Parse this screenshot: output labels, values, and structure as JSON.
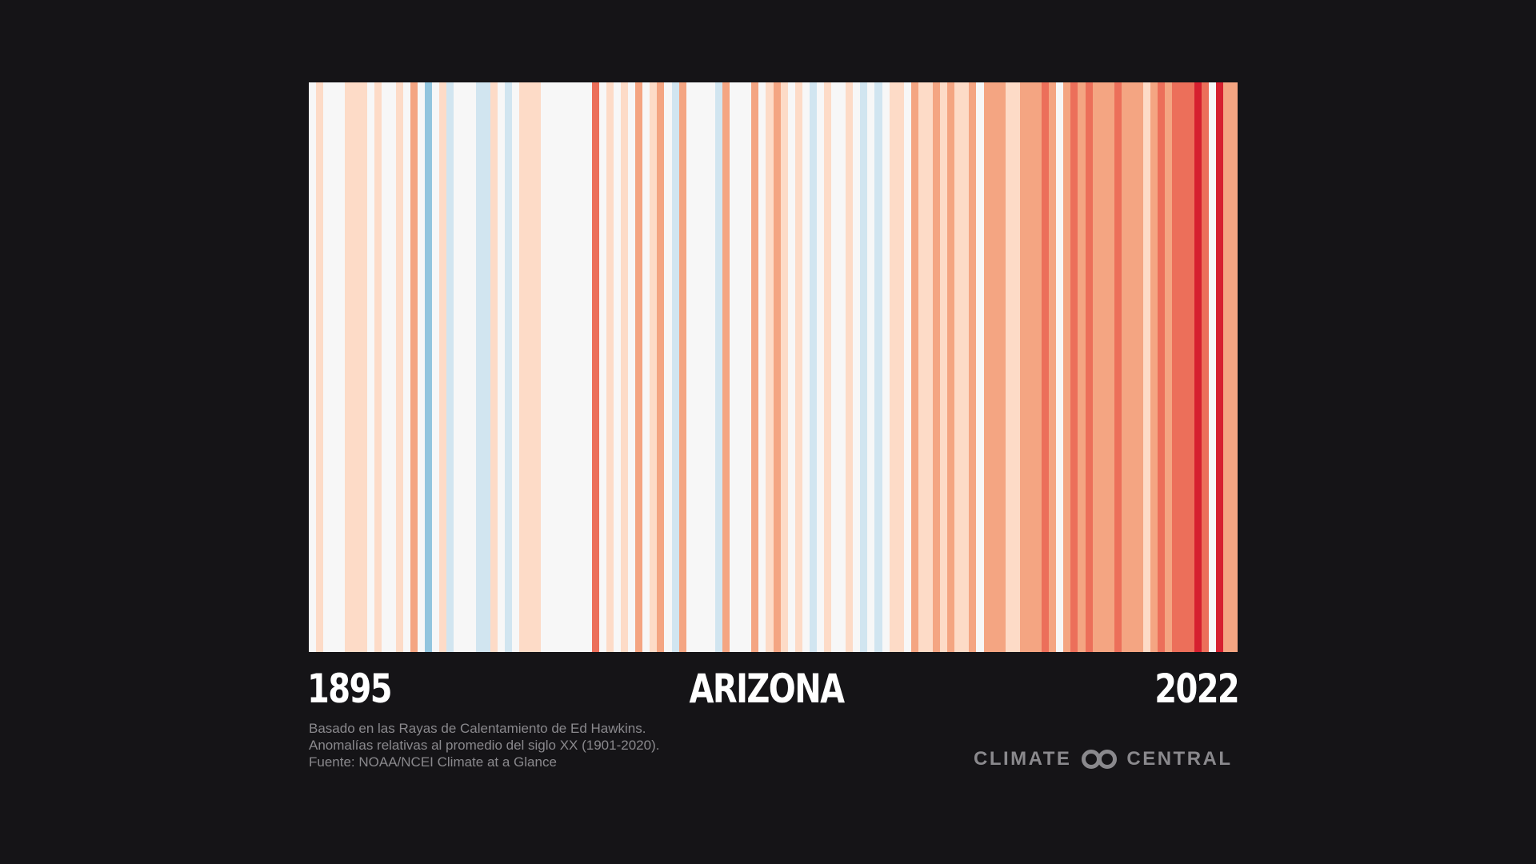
{
  "chart_data": {
    "type": "warming-stripes",
    "start_year": "1895",
    "end_year": "2022",
    "title": "ARIZONA",
    "palette": [
      "#2166ac",
      "#4393c3",
      "#92c5de",
      "#d1e5f0",
      "#f7f7f7",
      "#fddbc7",
      "#f4a582",
      "#ec6f5a",
      "#d6202f",
      "#b2182b"
    ],
    "anomaly_levels": [
      -4,
      -3,
      -2,
      -1,
      0,
      1,
      2,
      3,
      4,
      5
    ],
    "stripes": [
      {
        "year": 1895,
        "level": 0
      },
      {
        "year": 1896,
        "level": 1
      },
      {
        "year": 1897,
        "level": 0
      },
      {
        "year": 1898,
        "level": 0
      },
      {
        "year": 1899,
        "level": 0
      },
      {
        "year": 1900,
        "level": 1
      },
      {
        "year": 1901,
        "level": 1
      },
      {
        "year": 1902,
        "level": 1
      },
      {
        "year": 1903,
        "level": 0
      },
      {
        "year": 1904,
        "level": 1
      },
      {
        "year": 1905,
        "level": 0
      },
      {
        "year": 1906,
        "level": 0
      },
      {
        "year": 1907,
        "level": 1
      },
      {
        "year": 1908,
        "level": 0
      },
      {
        "year": 1909,
        "level": 2
      },
      {
        "year": 1910,
        "level": 0
      },
      {
        "year": 1911,
        "level": -2
      },
      {
        "year": 1912,
        "level": 0
      },
      {
        "year": 1913,
        "level": 1
      },
      {
        "year": 1914,
        "level": -1
      },
      {
        "year": 1915,
        "level": 0
      },
      {
        "year": 1916,
        "level": 0
      },
      {
        "year": 1917,
        "level": 0
      },
      {
        "year": 1918,
        "level": -1
      },
      {
        "year": 1919,
        "level": -1
      },
      {
        "year": 1920,
        "level": 1
      },
      {
        "year": 1921,
        "level": 0
      },
      {
        "year": 1922,
        "level": -1
      },
      {
        "year": 1923,
        "level": 0
      },
      {
        "year": 1924,
        "level": 1
      },
      {
        "year": 1925,
        "level": 1
      },
      {
        "year": 1926,
        "level": 1
      },
      {
        "year": 1927,
        "level": 0
      },
      {
        "year": 1928,
        "level": 0
      },
      {
        "year": 1929,
        "level": 0
      },
      {
        "year": 1930,
        "level": 0
      },
      {
        "year": 1931,
        "level": 0
      },
      {
        "year": 1932,
        "level": 0
      },
      {
        "year": 1933,
        "level": 0
      },
      {
        "year": 1934,
        "level": 3
      },
      {
        "year": 1935,
        "level": 0
      },
      {
        "year": 1936,
        "level": 1
      },
      {
        "year": 1937,
        "level": 0
      },
      {
        "year": 1938,
        "level": 1
      },
      {
        "year": 1939,
        "level": 0
      },
      {
        "year": 1940,
        "level": 2
      },
      {
        "year": 1941,
        "level": 0
      },
      {
        "year": 1942,
        "level": 1
      },
      {
        "year": 1943,
        "level": 2
      },
      {
        "year": 1944,
        "level": 0
      },
      {
        "year": 1945,
        "level": -1
      },
      {
        "year": 1946,
        "level": 2
      },
      {
        "year": 1947,
        "level": 0
      },
      {
        "year": 1948,
        "level": 0
      },
      {
        "year": 1949,
        "level": 0
      },
      {
        "year": 1950,
        "level": 0
      },
      {
        "year": 1951,
        "level": -1
      },
      {
        "year": 1952,
        "level": 2
      },
      {
        "year": 1953,
        "level": 0
      },
      {
        "year": 1954,
        "level": 0
      },
      {
        "year": 1955,
        "level": 0
      },
      {
        "year": 1956,
        "level": 2
      },
      {
        "year": 1957,
        "level": 0
      },
      {
        "year": 1958,
        "level": 1
      },
      {
        "year": 1959,
        "level": 2
      },
      {
        "year": 1960,
        "level": 1
      },
      {
        "year": 1961,
        "level": 0
      },
      {
        "year": 1962,
        "level": 1
      },
      {
        "year": 1963,
        "level": 0
      },
      {
        "year": 1964,
        "level": -1
      },
      {
        "year": 1965,
        "level": 0
      },
      {
        "year": 1966,
        "level": 1
      },
      {
        "year": 1967,
        "level": 0
      },
      {
        "year": 1968,
        "level": 0
      },
      {
        "year": 1969,
        "level": 1
      },
      {
        "year": 1970,
        "level": 0
      },
      {
        "year": 1971,
        "level": -1
      },
      {
        "year": 1972,
        "level": 0
      },
      {
        "year": 1973,
        "level": -1
      },
      {
        "year": 1974,
        "level": 0
      },
      {
        "year": 1975,
        "level": 1
      },
      {
        "year": 1976,
        "level": 1
      },
      {
        "year": 1977,
        "level": 0
      },
      {
        "year": 1978,
        "level": 2
      },
      {
        "year": 1979,
        "level": 1
      },
      {
        "year": 1980,
        "level": 1
      },
      {
        "year": 1981,
        "level": 2
      },
      {
        "year": 1982,
        "level": 1
      },
      {
        "year": 1983,
        "level": 2
      },
      {
        "year": 1984,
        "level": 1
      },
      {
        "year": 1985,
        "level": 1
      },
      {
        "year": 1986,
        "level": 2
      },
      {
        "year": 1987,
        "level": 0
      },
      {
        "year": 1988,
        "level": 2
      },
      {
        "year": 1989,
        "level": 2
      },
      {
        "year": 1990,
        "level": 2
      },
      {
        "year": 1991,
        "level": 1
      },
      {
        "year": 1992,
        "level": 1
      },
      {
        "year": 1993,
        "level": 2
      },
      {
        "year": 1994,
        "level": 2
      },
      {
        "year": 1995,
        "level": 2
      },
      {
        "year": 1996,
        "level": 3
      },
      {
        "year": 1997,
        "level": 2
      },
      {
        "year": 1998,
        "level": 0
      },
      {
        "year": 1999,
        "level": 2
      },
      {
        "year": 2000,
        "level": 3
      },
      {
        "year": 2001,
        "level": 2
      },
      {
        "year": 2002,
        "level": 3
      },
      {
        "year": 2003,
        "level": 2
      },
      {
        "year": 2004,
        "level": 2
      },
      {
        "year": 2005,
        "level": 2
      },
      {
        "year": 2006,
        "level": 3
      },
      {
        "year": 2007,
        "level": 2
      },
      {
        "year": 2008,
        "level": 2
      },
      {
        "year": 2009,
        "level": 2
      },
      {
        "year": 2010,
        "level": 1
      },
      {
        "year": 2011,
        "level": 2
      },
      {
        "year": 2012,
        "level": 3
      },
      {
        "year": 2013,
        "level": 2
      },
      {
        "year": 2014,
        "level": 3
      },
      {
        "year": 2015,
        "level": 3
      },
      {
        "year": 2016,
        "level": 3
      },
      {
        "year": 2017,
        "level": 4
      },
      {
        "year": 2018,
        "level": 3
      },
      {
        "year": 2019,
        "level": 0
      },
      {
        "year": 2020,
        "level": 4
      },
      {
        "year": 2021,
        "level": 2
      },
      {
        "year": 2022,
        "level": 2
      }
    ]
  },
  "footnote": {
    "line1": "Basado en las Rayas de Calentamiento de Ed Hawkins.",
    "line2": "Anomalías relativas al promedio del siglo XX (1901-2020).",
    "line3": "Fuente: NOAA/NCEI Climate at a Glance"
  },
  "brand": {
    "left_text": "CLIMATE",
    "right_text": "CENTRAL",
    "icon": "linked-circles-icon"
  },
  "colors": {
    "background": "#151417",
    "label_text": "#ffffff",
    "footnote_text": "#8a898d",
    "brand_text": "#8a898d"
  }
}
